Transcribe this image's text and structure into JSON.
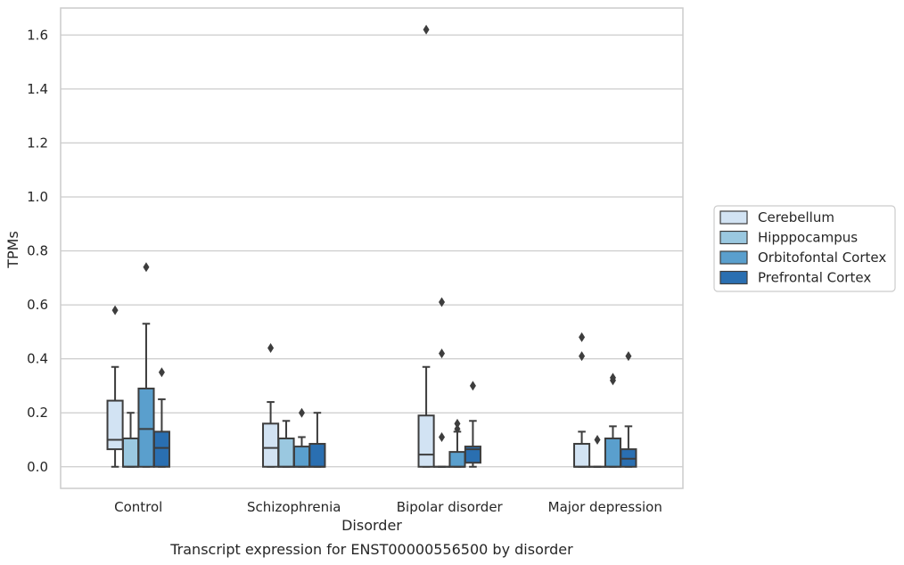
{
  "chart_data": {
    "type": "boxplot",
    "title": "",
    "caption": "Transcript expression for ENST00000556500 by disorder",
    "xlabel": "Disorder",
    "ylabel": "TPMs",
    "ylim": [
      -0.08,
      1.7
    ],
    "yticks": [
      0.0,
      0.2,
      0.4,
      0.6,
      0.8,
      1.0,
      1.2,
      1.4,
      1.6
    ],
    "ytick_labels": [
      "0.0",
      "0.2",
      "0.4",
      "0.6",
      "0.8",
      "1.0",
      "1.2",
      "1.4",
      "1.6"
    ],
    "grid": "horizontal",
    "legend_position": "right",
    "categories": [
      "Control",
      "Schizophrenia",
      "Bipolar disorder",
      "Major depression"
    ],
    "series": [
      {
        "name": "Cerebellum",
        "color": "#d2e3f3",
        "boxes": [
          {
            "whislo": 0.0,
            "q1": 0.065,
            "med": 0.1,
            "q3": 0.245,
            "whishi": 0.37,
            "fliers": [
              0.58
            ]
          },
          {
            "whislo": 0.0,
            "q1": 0.0,
            "med": 0.07,
            "q3": 0.16,
            "whishi": 0.24,
            "fliers": [
              0.44
            ]
          },
          {
            "whislo": 0.0,
            "q1": 0.0,
            "med": 0.045,
            "q3": 0.19,
            "whishi": 0.37,
            "fliers": [
              1.62
            ]
          },
          {
            "whislo": 0.0,
            "q1": 0.0,
            "med": 0.0,
            "q3": 0.085,
            "whishi": 0.13,
            "fliers": [
              0.41,
              0.48
            ]
          }
        ]
      },
      {
        "name": "Hipppocampus",
        "color": "#9ac8e0",
        "boxes": [
          {
            "whislo": 0.0,
            "q1": 0.0,
            "med": 0.0,
            "q3": 0.105,
            "whishi": 0.2,
            "fliers": []
          },
          {
            "whislo": 0.0,
            "q1": 0.0,
            "med": 0.0,
            "q3": 0.105,
            "whishi": 0.17,
            "fliers": []
          },
          {
            "whislo": 0.0,
            "q1": 0.0,
            "med": 0.0,
            "q3": 0.0,
            "whishi": 0.0,
            "fliers": [
              0.11,
              0.42,
              0.61
            ]
          },
          {
            "whislo": 0.0,
            "q1": 0.0,
            "med": 0.0,
            "q3": 0.0,
            "whishi": 0.0,
            "fliers": [
              0.1
            ]
          }
        ]
      },
      {
        "name": "Orbitofontal Cortex",
        "color": "#5a9fcd",
        "boxes": [
          {
            "whislo": 0.0,
            "q1": 0.0,
            "med": 0.14,
            "q3": 0.29,
            "whishi": 0.53,
            "fliers": [
              0.74
            ]
          },
          {
            "whislo": 0.0,
            "q1": 0.0,
            "med": 0.0,
            "q3": 0.075,
            "whishi": 0.11,
            "fliers": [
              0.2
            ]
          },
          {
            "whislo": 0.0,
            "q1": 0.0,
            "med": 0.0,
            "q3": 0.055,
            "whishi": 0.13,
            "fliers": [
              0.14,
              0.16
            ]
          },
          {
            "whislo": 0.0,
            "q1": 0.0,
            "med": 0.0,
            "q3": 0.105,
            "whishi": 0.15,
            "fliers": [
              0.32,
              0.33
            ]
          }
        ]
      },
      {
        "name": "Prefrontal Cortex",
        "color": "#2a6fb1",
        "boxes": [
          {
            "whislo": 0.0,
            "q1": 0.0,
            "med": 0.07,
            "q3": 0.13,
            "whishi": 0.25,
            "fliers": [
              0.35
            ]
          },
          {
            "whislo": 0.0,
            "q1": 0.0,
            "med": 0.0,
            "q3": 0.085,
            "whishi": 0.2,
            "fliers": []
          },
          {
            "whislo": 0.0,
            "q1": 0.015,
            "med": 0.065,
            "q3": 0.075,
            "whishi": 0.17,
            "fliers": [
              0.3
            ]
          },
          {
            "whislo": 0.0,
            "q1": 0.0,
            "med": 0.03,
            "q3": 0.065,
            "whishi": 0.15,
            "fliers": [
              0.41
            ]
          }
        ]
      }
    ]
  }
}
